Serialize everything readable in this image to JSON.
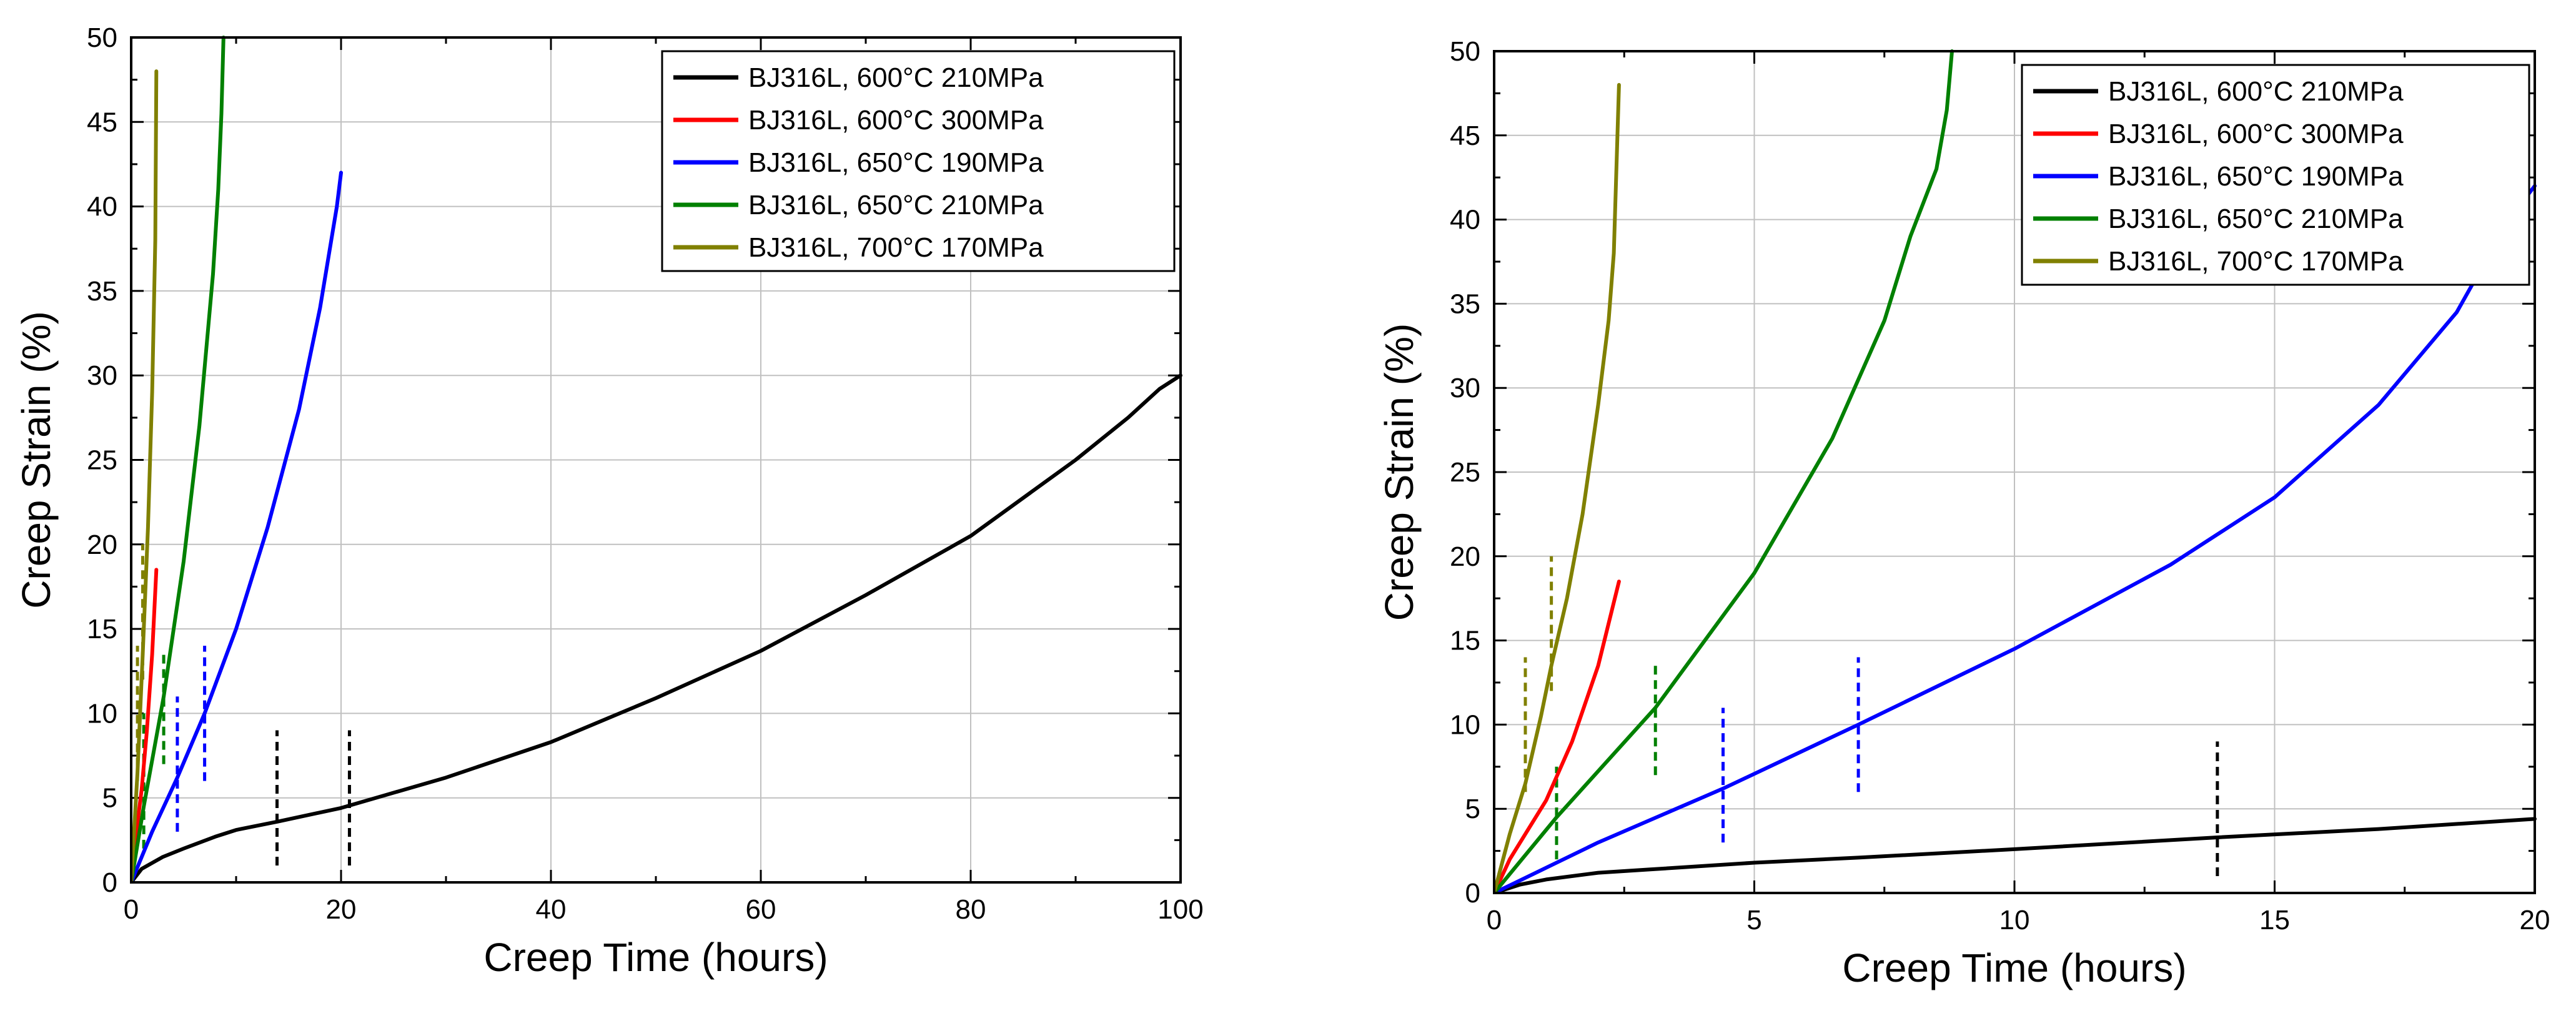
{
  "chart_data": [
    {
      "type": "line",
      "title": "",
      "xlabel": "Creep Time (hours)",
      "ylabel": "Creep Strain (%)",
      "xlim": [
        0,
        100
      ],
      "ylim": [
        0,
        50
      ],
      "xticks": [
        0,
        20,
        40,
        60,
        80,
        100
      ],
      "yticks": [
        0,
        5,
        10,
        15,
        20,
        25,
        30,
        35,
        40,
        45,
        50
      ],
      "grid": true,
      "legend_position": "top-right",
      "series": [
        {
          "name": "BJ316L, 600°C 210MPa",
          "color": "#000000",
          "x": [
            0,
            1,
            3,
            5,
            8,
            10,
            14,
            20,
            30,
            40,
            50,
            60,
            70,
            80,
            90,
            95,
            98,
            100
          ],
          "y": [
            0,
            0.8,
            1.5,
            2.0,
            2.7,
            3.1,
            3.6,
            4.4,
            6.2,
            8.3,
            10.9,
            13.7,
            17.0,
            20.5,
            25.0,
            27.5,
            29.2,
            30.0
          ]
        },
        {
          "name": "BJ316L, 600°C 300MPa",
          "color": "#ff0000",
          "x": [
            0,
            0.3,
            0.6,
            1.0,
            1.5,
            2.0,
            2.4
          ],
          "y": [
            0,
            2.0,
            3.5,
            5.5,
            9.0,
            13.5,
            18.5
          ]
        },
        {
          "name": "BJ316L, 650°C 190MPa",
          "color": "#0000ff",
          "x": [
            0,
            2,
            4.4,
            7,
            10,
            13,
            16,
            18,
            19.6,
            20
          ],
          "y": [
            0,
            3.0,
            6.2,
            10.0,
            15.0,
            21.0,
            28.0,
            34.0,
            40.0,
            42.0
          ]
        },
        {
          "name": "BJ316L, 650°C 210MPa",
          "color": "#008000",
          "x": [
            0,
            1.2,
            3.1,
            5.0,
            6.5,
            7.8,
            8.3,
            8.6,
            8.8
          ],
          "y": [
            0,
            4.5,
            11.0,
            19.0,
            27.0,
            36.0,
            41.0,
            45.5,
            50.0
          ]
        },
        {
          "name": "BJ316L, 700°C 170MPa",
          "color": "#808000",
          "x": [
            0,
            0.6,
            1.1,
            1.6,
            2.0,
            2.3,
            2.4
          ],
          "y": [
            0,
            6.5,
            13.5,
            21.0,
            29.0,
            38.0,
            48.0
          ]
        }
      ],
      "markers": [
        {
          "x": 13.9,
          "y1": 1.0,
          "y2": 9.0,
          "color": "#000000"
        },
        {
          "x": 20.8,
          "y1": 1.0,
          "y2": 9.0,
          "color": "#000000"
        },
        {
          "x": 4.4,
          "y1": 3.0,
          "y2": 11.0,
          "color": "#0000ff"
        },
        {
          "x": 7.0,
          "y1": 6.0,
          "y2": 14.0,
          "color": "#0000ff"
        },
        {
          "x": 1.2,
          "y1": 2.0,
          "y2": 10.0,
          "color": "#008000"
        },
        {
          "x": 3.1,
          "y1": 7.0,
          "y2": 13.5,
          "color": "#008000"
        },
        {
          "x": 0.6,
          "y1": 6.0,
          "y2": 14.0,
          "color": "#808000"
        },
        {
          "x": 1.1,
          "y1": 12.0,
          "y2": 20.0,
          "color": "#808000"
        }
      ]
    },
    {
      "type": "line",
      "title": "",
      "xlabel": "Creep Time (hours)",
      "ylabel": "Creep Strain (%)",
      "xlim": [
        0,
        20
      ],
      "ylim": [
        0,
        50
      ],
      "xticks": [
        0,
        5,
        10,
        15,
        20
      ],
      "yticks": [
        0,
        5,
        10,
        15,
        20,
        25,
        30,
        35,
        40,
        45,
        50
      ],
      "grid": true,
      "legend_position": "top-right",
      "series": [
        {
          "name": "BJ316L, 600°C 210MPa",
          "color": "#000000",
          "x": [
            0,
            0.5,
            1,
            2,
            3,
            5,
            7,
            10,
            13.9,
            17,
            20
          ],
          "y": [
            0,
            0.5,
            0.8,
            1.2,
            1.4,
            1.8,
            2.1,
            2.6,
            3.3,
            3.8,
            4.4
          ]
        },
        {
          "name": "BJ316L, 600°C 300MPa",
          "color": "#ff0000",
          "x": [
            0,
            0.3,
            0.6,
            1.0,
            1.5,
            2.0,
            2.4
          ],
          "y": [
            0,
            2.0,
            3.5,
            5.5,
            9.0,
            13.5,
            18.5
          ]
        },
        {
          "name": "BJ316L, 650°C 190MPa",
          "color": "#0000ff",
          "x": [
            0,
            1,
            2,
            4.4,
            7,
            10,
            13,
            15,
            17,
            18.5,
            19.5,
            20
          ],
          "y": [
            0,
            1.5,
            3.0,
            6.2,
            10.0,
            14.5,
            19.5,
            23.5,
            29.0,
            34.5,
            40.0,
            42.0
          ]
        },
        {
          "name": "BJ316L, 650°C 210MPa",
          "color": "#008000",
          "x": [
            0,
            1.2,
            3.1,
            5.0,
            6.5,
            7.5,
            8.0,
            8.5,
            8.7,
            8.8
          ],
          "y": [
            0,
            4.5,
            11.0,
            19.0,
            27.0,
            34.0,
            39.0,
            43.0,
            46.5,
            50.0
          ]
        },
        {
          "name": "BJ316L, 700°C 170MPa",
          "color": "#808000",
          "x": [
            0,
            0.3,
            0.6,
            0.9,
            1.1,
            1.4,
            1.7,
            2.0,
            2.2,
            2.3,
            2.4
          ],
          "y": [
            0,
            3.5,
            6.5,
            10.5,
            13.5,
            17.5,
            22.5,
            29.0,
            34.0,
            38.0,
            48.0
          ]
        }
      ],
      "markers": [
        {
          "x": 13.9,
          "y1": 1.0,
          "y2": 9.0,
          "color": "#000000"
        },
        {
          "x": 4.4,
          "y1": 3.0,
          "y2": 11.0,
          "color": "#0000ff"
        },
        {
          "x": 7.0,
          "y1": 6.0,
          "y2": 14.0,
          "color": "#0000ff"
        },
        {
          "x": 1.2,
          "y1": 2.0,
          "y2": 7.5,
          "color": "#008000"
        },
        {
          "x": 3.1,
          "y1": 7.0,
          "y2": 13.5,
          "color": "#008000"
        },
        {
          "x": 0.6,
          "y1": 6.0,
          "y2": 14.0,
          "color": "#808000"
        },
        {
          "x": 1.1,
          "y1": 12.0,
          "y2": 20.0,
          "color": "#808000"
        }
      ]
    }
  ]
}
